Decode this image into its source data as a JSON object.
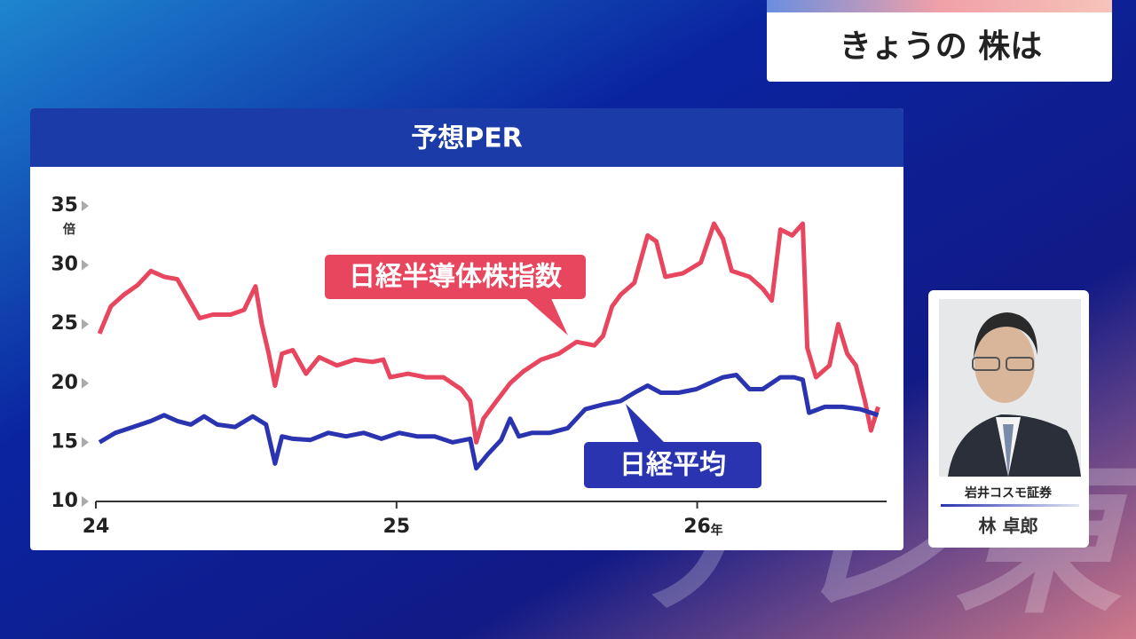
{
  "header": {
    "title": "きょうの 株は"
  },
  "watermark": "テレ東",
  "guest": {
    "company": "岩井コスモ証券",
    "name": "林 卓郎"
  },
  "chart_data": {
    "type": "line",
    "title": "予想PER",
    "y_unit_label": "倍",
    "x_unit_label": "年",
    "xlim": [
      24,
      26.63
    ],
    "xticks": [
      24,
      25,
      26
    ],
    "ylim": [
      10,
      35
    ],
    "yticks": [
      10,
      15,
      20,
      25,
      30,
      35
    ],
    "grid": false,
    "series": [
      {
        "name": "日経半導体株指数",
        "color": "#e8465e",
        "x": [
          24.012,
          24.05,
          24.094,
          24.139,
          24.183,
          24.227,
          24.271,
          24.307,
          24.345,
          24.389,
          24.448,
          24.493,
          24.531,
          24.552,
          24.575,
          24.596,
          24.619,
          24.655,
          24.699,
          24.743,
          24.802,
          24.861,
          24.92,
          24.956,
          24.979,
          25.038,
          25.097,
          25.156,
          25.215,
          25.245,
          25.265,
          25.289,
          25.333,
          25.378,
          25.422,
          25.481,
          25.54,
          25.599,
          25.658,
          25.687,
          25.717,
          25.746,
          25.791,
          25.835,
          25.864,
          25.894,
          25.953,
          26.012,
          26.056,
          26.086,
          26.115,
          26.174,
          26.218,
          26.248,
          26.277,
          26.316,
          26.351,
          26.366,
          26.395,
          26.44,
          26.469,
          26.499,
          26.528,
          26.558,
          26.578,
          26.602
        ],
        "values": [
          24.2,
          26.5,
          27.5,
          28.3,
          29.5,
          29,
          28.8,
          27.2,
          25.5,
          25.8,
          25.8,
          26.2,
          28.2,
          25,
          22.5,
          19.8,
          22.5,
          22.8,
          20.8,
          22.2,
          21.5,
          22,
          21.8,
          22,
          20.5,
          20.8,
          20.5,
          20.5,
          19.5,
          18.5,
          15,
          17,
          18.5,
          20,
          21,
          22,
          22.5,
          23.5,
          23.2,
          24,
          26.5,
          27.5,
          28.5,
          32.5,
          32,
          29,
          29.3,
          30.2,
          33.5,
          32.2,
          29.5,
          29,
          28,
          27,
          33,
          32.5,
          33.5,
          23,
          20.5,
          21.5,
          25,
          22.5,
          21.5,
          18.5,
          16,
          18
        ]
      },
      {
        "name": "日経平均",
        "color": "#2a34b0",
        "x": [
          24.012,
          24.065,
          24.124,
          24.183,
          24.227,
          24.271,
          24.316,
          24.36,
          24.404,
          24.463,
          24.522,
          24.566,
          24.596,
          24.619,
          24.655,
          24.714,
          24.773,
          24.832,
          24.891,
          24.95,
          25.009,
          25.068,
          25.127,
          25.186,
          25.245,
          25.265,
          25.304,
          25.348,
          25.378,
          25.407,
          25.451,
          25.51,
          25.569,
          25.628,
          25.687,
          25.746,
          25.791,
          25.835,
          25.879,
          25.938,
          25.997,
          26.041,
          26.086,
          26.13,
          26.174,
          26.218,
          26.277,
          26.322,
          26.351,
          26.372,
          26.425,
          26.484,
          26.543,
          26.602
        ],
        "values": [
          15,
          15.8,
          16.3,
          16.8,
          17.3,
          16.8,
          16.5,
          17.2,
          16.5,
          16.3,
          17.2,
          16.5,
          13.2,
          15.5,
          15.3,
          15.2,
          15.8,
          15.5,
          15.8,
          15.3,
          15.8,
          15.5,
          15.5,
          15,
          15.3,
          12.8,
          14,
          15.2,
          17,
          15.5,
          15.8,
          15.8,
          16.2,
          17.8,
          18.2,
          18.5,
          19.2,
          19.8,
          19.2,
          19.2,
          19.5,
          20,
          20.5,
          20.7,
          19.5,
          19.5,
          20.5,
          20.5,
          20.3,
          17.5,
          18,
          18,
          17.8,
          17.3
        ]
      }
    ]
  }
}
